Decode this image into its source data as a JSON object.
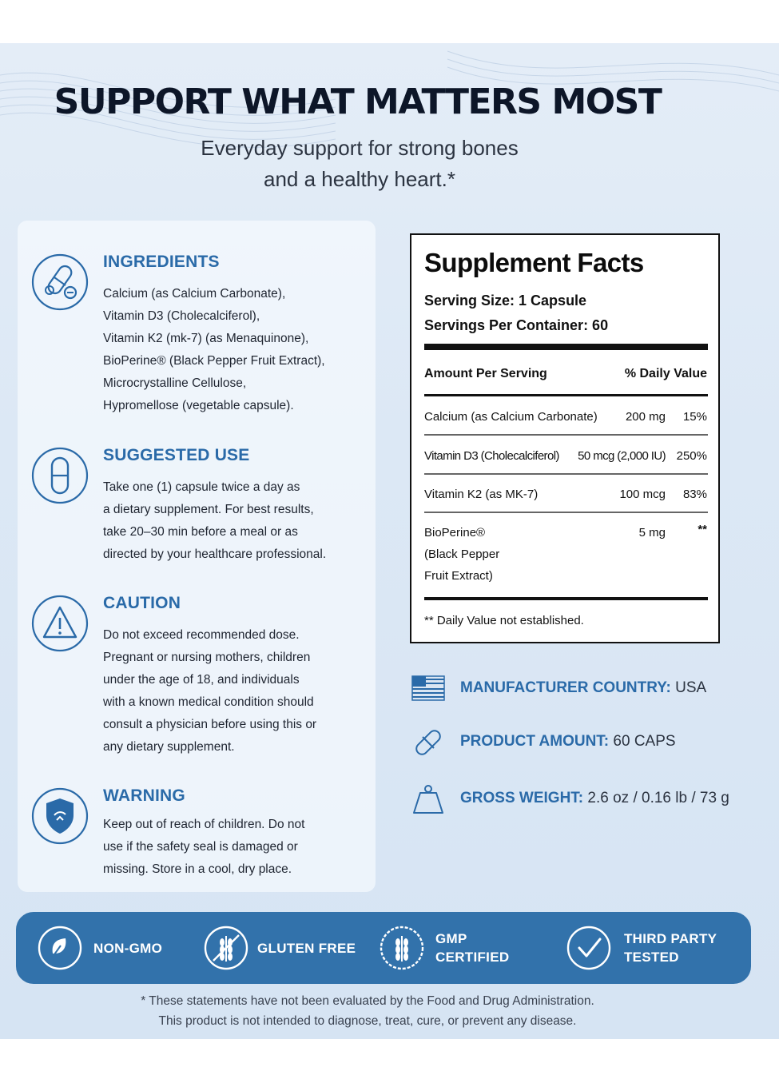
{
  "headline": "SUPPORT WHAT MATTERS MOST",
  "subhead": [
    "Everyday support for strong bones",
    "and a healthy heart.*"
  ],
  "sections": [
    {
      "title": "INGREDIENTS",
      "icon": "pills-capsule-icon",
      "lines": [
        "Calcium (as Calcium Carbonate),",
        "Vitamin D3 (Cholecalciferol),",
        "Vitamin K2 (mk-7) (as Menaquinone),",
        "BioPerine® (Black Pepper Fruit Extract),",
        "Microcrystalline Cellulose,",
        "Hypromellose (vegetable capsule)."
      ]
    },
    {
      "title": "SUGGESTED USE",
      "icon": "capsule-icon",
      "lines": [
        "Take one (1) capsule twice a day as",
        "a dietary supplement. For best results,",
        "take 20–30 min before a meal or as",
        "directed by your healthcare professional."
      ]
    },
    {
      "title": "CAUTION",
      "icon": "warning-triangle-icon",
      "lines": [
        "Do not exceed recommended dose.",
        "Pregnant or nursing mothers, children",
        "under the age of 18, and individuals",
        "with a known medical condition should",
        "consult a physician before using this or",
        "any dietary supplement."
      ]
    },
    {
      "title": "WARNING",
      "icon": "shield-icon",
      "lines": [
        "Keep out of reach of children. Do not",
        "use if the safety seal is damaged or",
        "missing. Store in a cool, dry place."
      ]
    }
  ],
  "facts": {
    "title": "Supplement Facts",
    "serving_size": "Serving Size: 1 Capsule",
    "servings_per_container": "Servings Per Container: 60",
    "col_amount": "Amount Per Serving",
    "col_dv": "% Daily Value",
    "rows": [
      {
        "name": "Calcium (as Calcium Carbonate)",
        "amount": "200 mg",
        "dv": "15%"
      },
      {
        "name": "Vitamin D3 (Cholecalciferol)",
        "amount": "50 mcg (2,000 IU)",
        "dv": "250%"
      },
      {
        "name": "Vitamin K2 (as MK-7)",
        "amount": "100 mcg",
        "dv": "83%"
      },
      {
        "name": "BioPerine®",
        "name2": "(Black Pepper",
        "name3": "Fruit Extract)",
        "amount": "5 mg",
        "dv": "**"
      }
    ],
    "note": "** Daily Value not established."
  },
  "specs": [
    {
      "icon": "us-flag-icon",
      "label": "MANUFACTURER COUNTRY:",
      "value": " USA"
    },
    {
      "icon": "capsule-icon",
      "label": "PRODUCT AMOUNT:",
      "value": " 60 CAPS"
    },
    {
      "icon": "weight-icon",
      "label": "GROSS WEIGHT:",
      "value": " 2.6 oz / 0.16 lb / 73 g"
    }
  ],
  "badges": [
    {
      "icon": "leaf-icon",
      "line1": "NON-GMO",
      "line2": ""
    },
    {
      "icon": "wheat-icon",
      "line1": "GLUTEN FREE",
      "line2": ""
    },
    {
      "icon": "wheat-seal-icon",
      "line1": "GMP",
      "line2": "CERTIFIED"
    },
    {
      "icon": "checkmark-icon",
      "line1": "THIRD PARTY",
      "line2": "TESTED"
    }
  ],
  "disclaimer": [
    "* These statements have not been evaluated by the Food and Drug Administration.",
    "This product is not intended to diagnose, treat, cure, or prevent any disease."
  ],
  "colors": {
    "accent": "#2a6aa8",
    "badge_bar": "#3272ab",
    "headline": "#0d1628"
  }
}
